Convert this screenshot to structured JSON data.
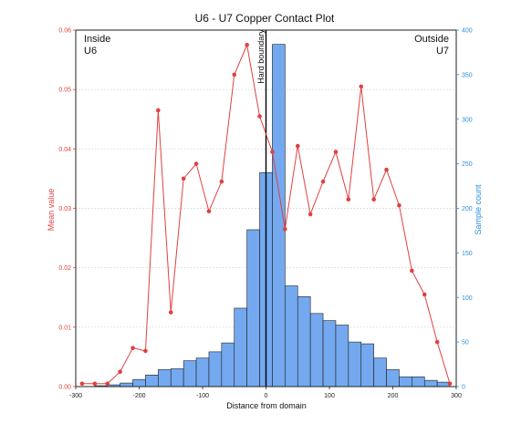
{
  "chart_data": {
    "type": "bar+line",
    "title": "U6 - U7 Copper Contact Plot",
    "xlabel": "Distance from domain",
    "ylabel_left": "Mean value",
    "ylabel_right": "Sample count",
    "xlim": [
      -300,
      300
    ],
    "xticks": [
      "-300",
      "-200",
      "-100",
      "0",
      "100",
      "200",
      "300"
    ],
    "ylim_left": [
      0,
      0.06
    ],
    "yticks_left": [
      "0.00",
      "0.01",
      "0.02",
      "0.03",
      "0.04",
      "0.05",
      "0.06"
    ],
    "ylim_right": [
      0,
      400
    ],
    "yticks_right": [
      "0",
      "50",
      "100",
      "150",
      "200",
      "250",
      "300",
      "350",
      "400"
    ],
    "grid": "horizontal dotted",
    "annotations": {
      "inside_line1": "Inside",
      "inside_line2": "U6",
      "outside_line1": "Outside",
      "outside_line2": "U7",
      "boundary": "Hard boundary"
    },
    "colors": {
      "bars": "#74a9f0",
      "bar_edge": "#1f1f1f",
      "mean_line": "#e04040",
      "left_axis": "#e04040",
      "right_axis": "#2a8fe0",
      "boundary_line": "#000000"
    },
    "histogram": {
      "bin_width": 20,
      "bins": [
        {
          "x": -300,
          "count": 0
        },
        {
          "x": -280,
          "count": 0
        },
        {
          "x": -260,
          "count": 1
        },
        {
          "x": -240,
          "count": 2
        },
        {
          "x": -220,
          "count": 4
        },
        {
          "x": -200,
          "count": 8
        },
        {
          "x": -180,
          "count": 13
        },
        {
          "x": -160,
          "count": 19
        },
        {
          "x": -140,
          "count": 20
        },
        {
          "x": -120,
          "count": 29
        },
        {
          "x": -100,
          "count": 32
        },
        {
          "x": -80,
          "count": 39
        },
        {
          "x": -60,
          "count": 49
        },
        {
          "x": -40,
          "count": 88
        },
        {
          "x": -20,
          "count": 176
        },
        {
          "x": 0,
          "count": 240
        },
        {
          "x": 20,
          "count": 384
        },
        {
          "x": 40,
          "count": 113
        },
        {
          "x": 60,
          "count": 101
        },
        {
          "x": 80,
          "count": 82
        },
        {
          "x": 100,
          "count": 74
        },
        {
          "x": 120,
          "count": 69
        },
        {
          "x": 140,
          "count": 50
        },
        {
          "x": 160,
          "count": 48
        },
        {
          "x": 180,
          "count": 32
        },
        {
          "x": 200,
          "count": 19
        },
        {
          "x": 220,
          "count": 11
        },
        {
          "x": 240,
          "count": 11
        },
        {
          "x": 260,
          "count": 7
        },
        {
          "x": 280,
          "count": 5
        },
        {
          "x": 300,
          "count": 0
        }
      ]
    },
    "mean_series": {
      "name": "Mean value",
      "x": [
        -290,
        -270,
        -250,
        -230,
        -210,
        -190,
        -170,
        -150,
        -130,
        -110,
        -90,
        -70,
        -50,
        -30,
        -10,
        10,
        30,
        50,
        70,
        90,
        110,
        130,
        150,
        170,
        190,
        210,
        230,
        250,
        270,
        290
      ],
      "y": [
        0.0005,
        0.0005,
        0.0005,
        0.0025,
        0.0065,
        0.006,
        0.0465,
        0.0125,
        0.035,
        0.0375,
        0.0295,
        0.0345,
        0.0525,
        0.0575,
        0.0455,
        0.0395,
        0.0265,
        0.0405,
        0.029,
        0.0345,
        0.0395,
        0.0315,
        0.0505,
        0.0315,
        0.0365,
        0.0305,
        0.0195,
        0.0155,
        0.0075,
        0.0005
      ]
    }
  }
}
